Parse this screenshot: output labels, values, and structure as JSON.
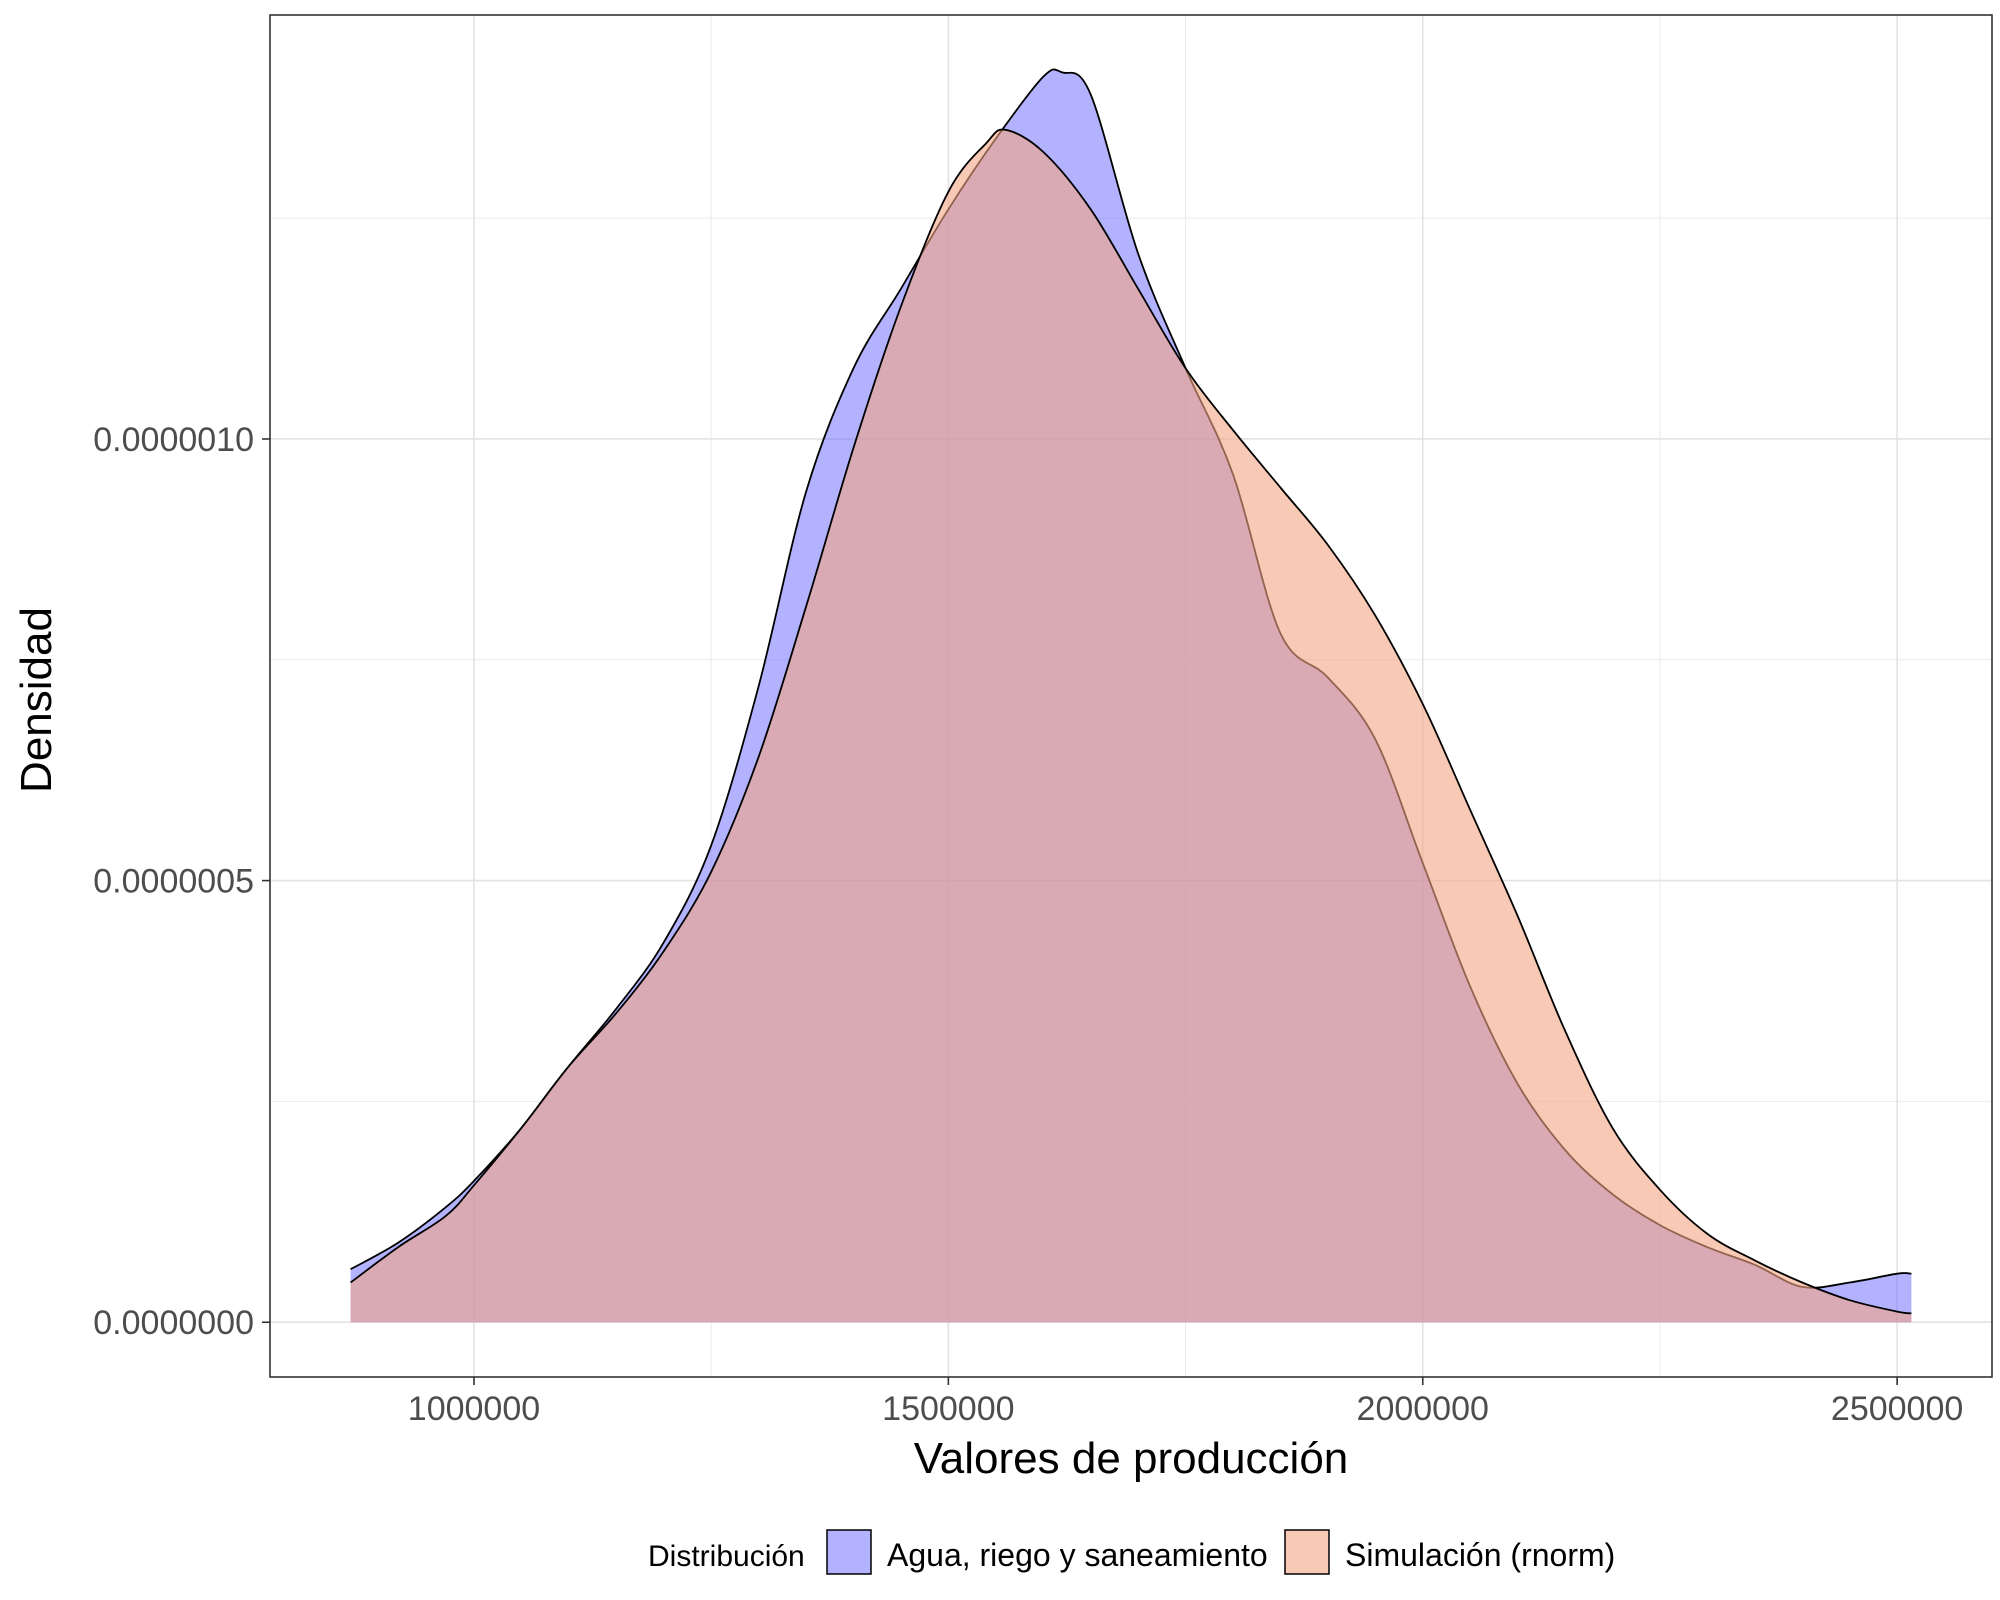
{
  "chart_data": {
    "type": "area",
    "subtype": "density",
    "xlabel": "Valores de producción",
    "ylabel": "Densidad",
    "xlim": [
      785000,
      2600000
    ],
    "ylim": [
      -6.2e-08,
      1.48e-06
    ],
    "x_ticks": [
      1000000,
      1500000,
      2000000,
      2500000
    ],
    "x_tick_labels": [
      "1000000",
      "1500000",
      "2000000",
      "2500000"
    ],
    "y_ticks": [
      0,
      5e-07,
      1e-06
    ],
    "y_tick_labels": [
      "0.0000000",
      "0.0000005",
      "0.0000010"
    ],
    "grid": true,
    "legend": {
      "title": "Distribución",
      "position": "bottom"
    },
    "series": [
      {
        "name": "Agua, riego y saneamiento",
        "color": "#6666FF",
        "x": [
          870000,
          920000,
          970000,
          1000000,
          1050000,
          1100000,
          1150000,
          1200000,
          1250000,
          1300000,
          1350000,
          1400000,
          1450000,
          1500000,
          1550000,
          1600000,
          1620000,
          1650000,
          1700000,
          1750000,
          1800000,
          1850000,
          1900000,
          1950000,
          2000000,
          2050000,
          2100000,
          2150000,
          2200000,
          2250000,
          2300000,
          2350000,
          2400000,
          2450000,
          2500000,
          2515000
        ],
        "y": [
          6e-08,
          9e-08,
          1.3e-07,
          1.6e-07,
          2.2e-07,
          2.9e-07,
          3.55e-07,
          4.3e-07,
          5.4e-07,
          7.2e-07,
          9.4e-07,
          1.08e-06,
          1.17e-06,
          1.26e-06,
          1.34e-06,
          1.41e-06,
          1.415e-06,
          1.39e-06,
          1.21e-06,
          1.08e-06,
          9.6e-07,
          7.8e-07,
          7.3e-07,
          6.6e-07,
          5.2e-07,
          3.8e-07,
          2.7e-07,
          1.95e-07,
          1.45e-07,
          1.1e-07,
          8.5e-08,
          6.5e-08,
          4e-08,
          4.5e-08,
          5.5e-08,
          5.5e-08
        ]
      },
      {
        "name": "Simulación (rnorm)",
        "color": "#F4A582",
        "x": [
          870000,
          920000,
          970000,
          1000000,
          1050000,
          1100000,
          1150000,
          1200000,
          1250000,
          1300000,
          1350000,
          1400000,
          1450000,
          1500000,
          1540000,
          1560000,
          1600000,
          1650000,
          1700000,
          1750000,
          1800000,
          1850000,
          1900000,
          1950000,
          2000000,
          2050000,
          2100000,
          2150000,
          2200000,
          2250000,
          2300000,
          2350000,
          2400000,
          2450000,
          2500000,
          2515000
        ],
        "y": [
          4.5e-08,
          8.5e-08,
          1.2e-07,
          1.55e-07,
          2.2e-07,
          2.9e-07,
          3.5e-07,
          4.2e-07,
          5.1e-07,
          6.4e-07,
          8.1e-07,
          9.9e-07,
          1.15e-06,
          1.28e-06,
          1.335e-06,
          1.35e-06,
          1.325e-06,
          1.26e-06,
          1.17e-06,
          1.08e-06,
          1.01e-06,
          9.45e-07,
          8.8e-07,
          8e-07,
          7e-07,
          5.8e-07,
          4.6e-07,
          3.3e-07,
          2.2e-07,
          1.5e-07,
          1e-07,
          7e-08,
          4.5e-08,
          2.5e-08,
          1.2e-08,
          1e-08
        ]
      }
    ]
  }
}
